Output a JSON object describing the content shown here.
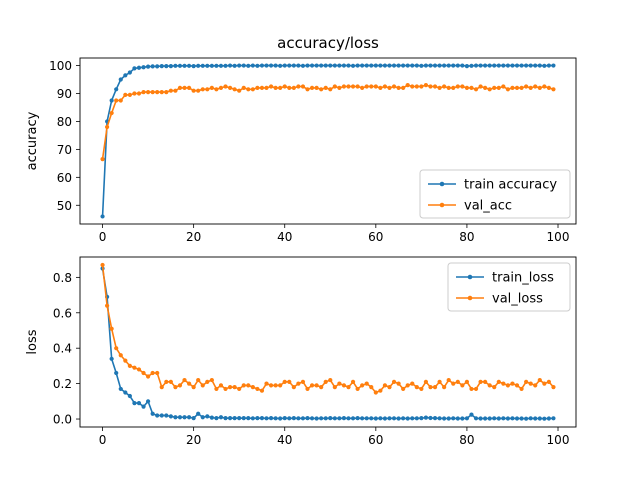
{
  "colors": {
    "series1": "#1f77b4",
    "series2": "#ff7f0e",
    "axis": "#000000",
    "legend_border": "#cccccc"
  },
  "chart_data": [
    {
      "type": "line",
      "title": "accuracy/loss",
      "xlabel": "",
      "ylabel": "accuracy",
      "xlim": [
        -4.95,
        103.95
      ],
      "ylim": [
        43.3,
        102.7
      ],
      "xticks": [
        0,
        20,
        40,
        60,
        80,
        100
      ],
      "yticks": [
        50,
        60,
        70,
        80,
        90,
        100
      ],
      "grid": false,
      "legend_position": "lower-right",
      "x": [
        0,
        1,
        2,
        3,
        4,
        5,
        6,
        7,
        8,
        9,
        10,
        11,
        12,
        13,
        14,
        15,
        16,
        17,
        18,
        19,
        20,
        21,
        22,
        23,
        24,
        25,
        26,
        27,
        28,
        29,
        30,
        31,
        32,
        33,
        34,
        35,
        36,
        37,
        38,
        39,
        40,
        41,
        42,
        43,
        44,
        45,
        46,
        47,
        48,
        49,
        50,
        51,
        52,
        53,
        54,
        55,
        56,
        57,
        58,
        59,
        60,
        61,
        62,
        63,
        64,
        65,
        66,
        67,
        68,
        69,
        70,
        71,
        72,
        73,
        74,
        75,
        76,
        77,
        78,
        79,
        80,
        81,
        82,
        83,
        84,
        85,
        86,
        87,
        88,
        89,
        90,
        91,
        92,
        93,
        94,
        95,
        96,
        97,
        98,
        99
      ],
      "series": [
        {
          "name": "train accuracy",
          "values": [
            46.0,
            80.0,
            87.5,
            91.5,
            95.0,
            96.5,
            97.5,
            99.0,
            99.2,
            99.4,
            99.6,
            99.7,
            99.7,
            99.8,
            99.8,
            99.8,
            99.9,
            99.9,
            99.9,
            99.9,
            99.8,
            99.9,
            99.9,
            99.9,
            99.9,
            99.9,
            99.9,
            99.9,
            100.0,
            99.9,
            100.0,
            100.0,
            99.9,
            100.0,
            99.9,
            100.0,
            100.0,
            100.0,
            100.0,
            99.9,
            100.0,
            100.0,
            100.0,
            100.0,
            99.9,
            100.0,
            100.0,
            100.0,
            100.0,
            100.0,
            100.0,
            100.0,
            100.0,
            100.0,
            100.0,
            99.9,
            100.0,
            100.0,
            100.0,
            100.0,
            100.0,
            100.0,
            100.0,
            100.0,
            100.0,
            100.0,
            100.0,
            100.0,
            100.0,
            100.0,
            99.9,
            100.0,
            100.0,
            100.0,
            100.0,
            100.0,
            100.0,
            100.0,
            100.0,
            100.0,
            99.8,
            99.9,
            100.0,
            100.0,
            100.0,
            100.0,
            100.0,
            100.0,
            100.0,
            100.0,
            100.0,
            100.0,
            100.0,
            100.0,
            100.0,
            100.0,
            100.0,
            99.9,
            100.0,
            100.0
          ]
        },
        {
          "name": "val_acc",
          "values": [
            66.5,
            78.0,
            83.0,
            87.5,
            87.5,
            89.5,
            89.5,
            90.0,
            90.0,
            90.5,
            90.5,
            90.5,
            90.5,
            90.5,
            90.5,
            91.0,
            91.0,
            92.0,
            92.0,
            92.0,
            91.0,
            91.0,
            91.5,
            91.5,
            92.0,
            91.5,
            92.0,
            92.5,
            92.0,
            91.5,
            91.0,
            92.0,
            91.5,
            91.5,
            92.0,
            92.0,
            92.0,
            92.5,
            92.0,
            92.0,
            92.5,
            92.0,
            92.0,
            92.5,
            92.5,
            91.5,
            92.0,
            92.0,
            91.5,
            92.0,
            91.5,
            92.5,
            92.0,
            92.5,
            92.5,
            92.5,
            92.5,
            92.0,
            92.5,
            92.5,
            92.5,
            92.0,
            92.5,
            92.0,
            92.5,
            92.0,
            92.0,
            93.0,
            92.5,
            92.5,
            92.5,
            93.0,
            92.5,
            92.5,
            92.0,
            92.5,
            92.0,
            92.0,
            92.5,
            92.5,
            92.0,
            92.0,
            91.5,
            92.5,
            92.0,
            91.5,
            92.0,
            92.0,
            92.5,
            91.5,
            92.0,
            92.0,
            92.0,
            92.5,
            92.0,
            92.5,
            92.0,
            92.5,
            92.0,
            91.5
          ]
        }
      ]
    },
    {
      "type": "line",
      "title": "",
      "xlabel": "",
      "ylabel": "loss",
      "xlim": [
        -4.95,
        103.95
      ],
      "ylim": [
        -0.045,
        0.915
      ],
      "xticks": [
        0,
        20,
        40,
        60,
        80,
        100
      ],
      "xtick_labels": [
        "0",
        "20",
        "40",
        "60",
        "80",
        "100"
      ],
      "yticks": [
        0.0,
        0.2,
        0.4,
        0.6,
        0.8
      ],
      "ytick_labels": [
        "0.0",
        "0.2",
        "0.4",
        "0.6",
        "0.8"
      ],
      "grid": false,
      "legend_position": "upper-right",
      "x": [
        0,
        1,
        2,
        3,
        4,
        5,
        6,
        7,
        8,
        9,
        10,
        11,
        12,
        13,
        14,
        15,
        16,
        17,
        18,
        19,
        20,
        21,
        22,
        23,
        24,
        25,
        26,
        27,
        28,
        29,
        30,
        31,
        32,
        33,
        34,
        35,
        36,
        37,
        38,
        39,
        40,
        41,
        42,
        43,
        44,
        45,
        46,
        47,
        48,
        49,
        50,
        51,
        52,
        53,
        54,
        55,
        56,
        57,
        58,
        59,
        60,
        61,
        62,
        63,
        64,
        65,
        66,
        67,
        68,
        69,
        70,
        71,
        72,
        73,
        74,
        75,
        76,
        77,
        78,
        79,
        80,
        81,
        82,
        83,
        84,
        85,
        86,
        87,
        88,
        89,
        90,
        91,
        92,
        93,
        94,
        95,
        96,
        97,
        98,
        99
      ],
      "series": [
        {
          "name": "train_loss",
          "values": [
            0.85,
            0.69,
            0.34,
            0.26,
            0.17,
            0.15,
            0.13,
            0.09,
            0.09,
            0.07,
            0.1,
            0.03,
            0.02,
            0.02,
            0.02,
            0.015,
            0.01,
            0.01,
            0.01,
            0.01,
            0.005,
            0.03,
            0.01,
            0.015,
            0.008,
            0.005,
            0.01,
            0.005,
            0.005,
            0.005,
            0.005,
            0.005,
            0.005,
            0.004,
            0.005,
            0.005,
            0.004,
            0.005,
            0.004,
            0.003,
            0.005,
            0.004,
            0.005,
            0.004,
            0.004,
            0.005,
            0.004,
            0.003,
            0.004,
            0.004,
            0.005,
            0.004,
            0.004,
            0.005,
            0.004,
            0.004,
            0.005,
            0.004,
            0.004,
            0.004,
            0.003,
            0.004,
            0.003,
            0.004,
            0.004,
            0.003,
            0.004,
            0.003,
            0.004,
            0.004,
            0.005,
            0.008,
            0.006,
            0.005,
            0.004,
            0.003,
            0.003,
            0.004,
            0.003,
            0.003,
            0.004,
            0.025,
            0.004,
            0.003,
            0.003,
            0.003,
            0.004,
            0.003,
            0.004,
            0.003,
            0.004,
            0.003,
            0.003,
            0.002,
            0.004,
            0.003,
            0.003,
            0.002,
            0.003,
            0.004
          ]
        },
        {
          "name": "val_loss",
          "values": [
            0.87,
            0.64,
            0.51,
            0.4,
            0.36,
            0.33,
            0.3,
            0.29,
            0.28,
            0.26,
            0.24,
            0.26,
            0.26,
            0.18,
            0.21,
            0.21,
            0.18,
            0.19,
            0.22,
            0.2,
            0.18,
            0.22,
            0.19,
            0.21,
            0.22,
            0.17,
            0.19,
            0.17,
            0.18,
            0.18,
            0.17,
            0.19,
            0.19,
            0.18,
            0.17,
            0.16,
            0.2,
            0.19,
            0.19,
            0.19,
            0.21,
            0.21,
            0.18,
            0.2,
            0.21,
            0.17,
            0.19,
            0.19,
            0.18,
            0.21,
            0.22,
            0.18,
            0.2,
            0.19,
            0.18,
            0.21,
            0.17,
            0.19,
            0.2,
            0.18,
            0.15,
            0.16,
            0.19,
            0.18,
            0.21,
            0.2,
            0.17,
            0.19,
            0.2,
            0.18,
            0.17,
            0.21,
            0.18,
            0.18,
            0.21,
            0.18,
            0.22,
            0.2,
            0.21,
            0.19,
            0.21,
            0.17,
            0.17,
            0.21,
            0.21,
            0.19,
            0.18,
            0.21,
            0.2,
            0.19,
            0.2,
            0.19,
            0.17,
            0.21,
            0.2,
            0.19,
            0.22,
            0.2,
            0.21,
            0.18
          ]
        }
      ]
    }
  ]
}
